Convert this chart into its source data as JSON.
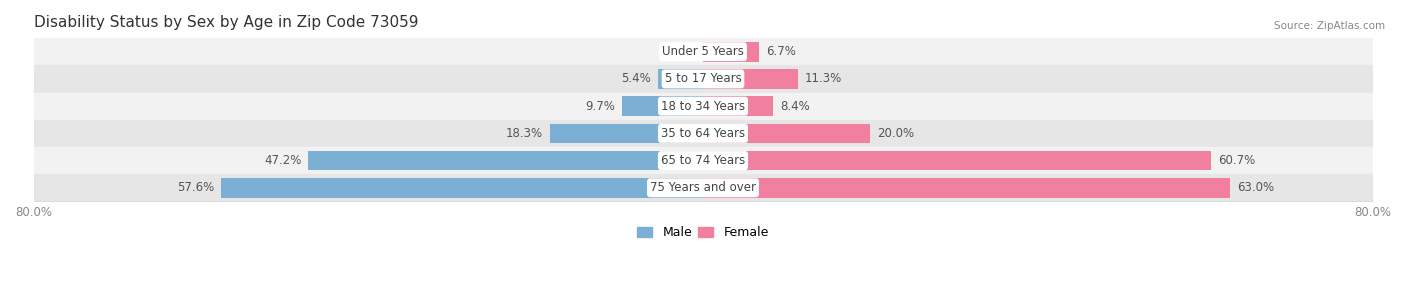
{
  "title": "Disability Status by Sex by Age in Zip Code 73059",
  "source": "Source: ZipAtlas.com",
  "categories": [
    "Under 5 Years",
    "5 to 17 Years",
    "18 to 34 Years",
    "35 to 64 Years",
    "65 to 74 Years",
    "75 Years and over"
  ],
  "male_values": [
    0.0,
    5.4,
    9.7,
    18.3,
    47.2,
    57.6
  ],
  "female_values": [
    6.7,
    11.3,
    8.4,
    20.0,
    60.7,
    63.0
  ],
  "male_color": "#7bafd4",
  "female_color": "#f07fa0",
  "row_bg_even": "#f2f2f2",
  "row_bg_odd": "#e6e6e6",
  "x_min": -80.0,
  "x_max": 80.0,
  "bar_height": 0.72,
  "label_fontsize": 8.5,
  "title_fontsize": 11,
  "legend_male": "Male",
  "legend_female": "Female",
  "xtick_labels": [
    "80.0%",
    "80.0%"
  ],
  "xtick_positions": [
    -80.0,
    80.0
  ]
}
